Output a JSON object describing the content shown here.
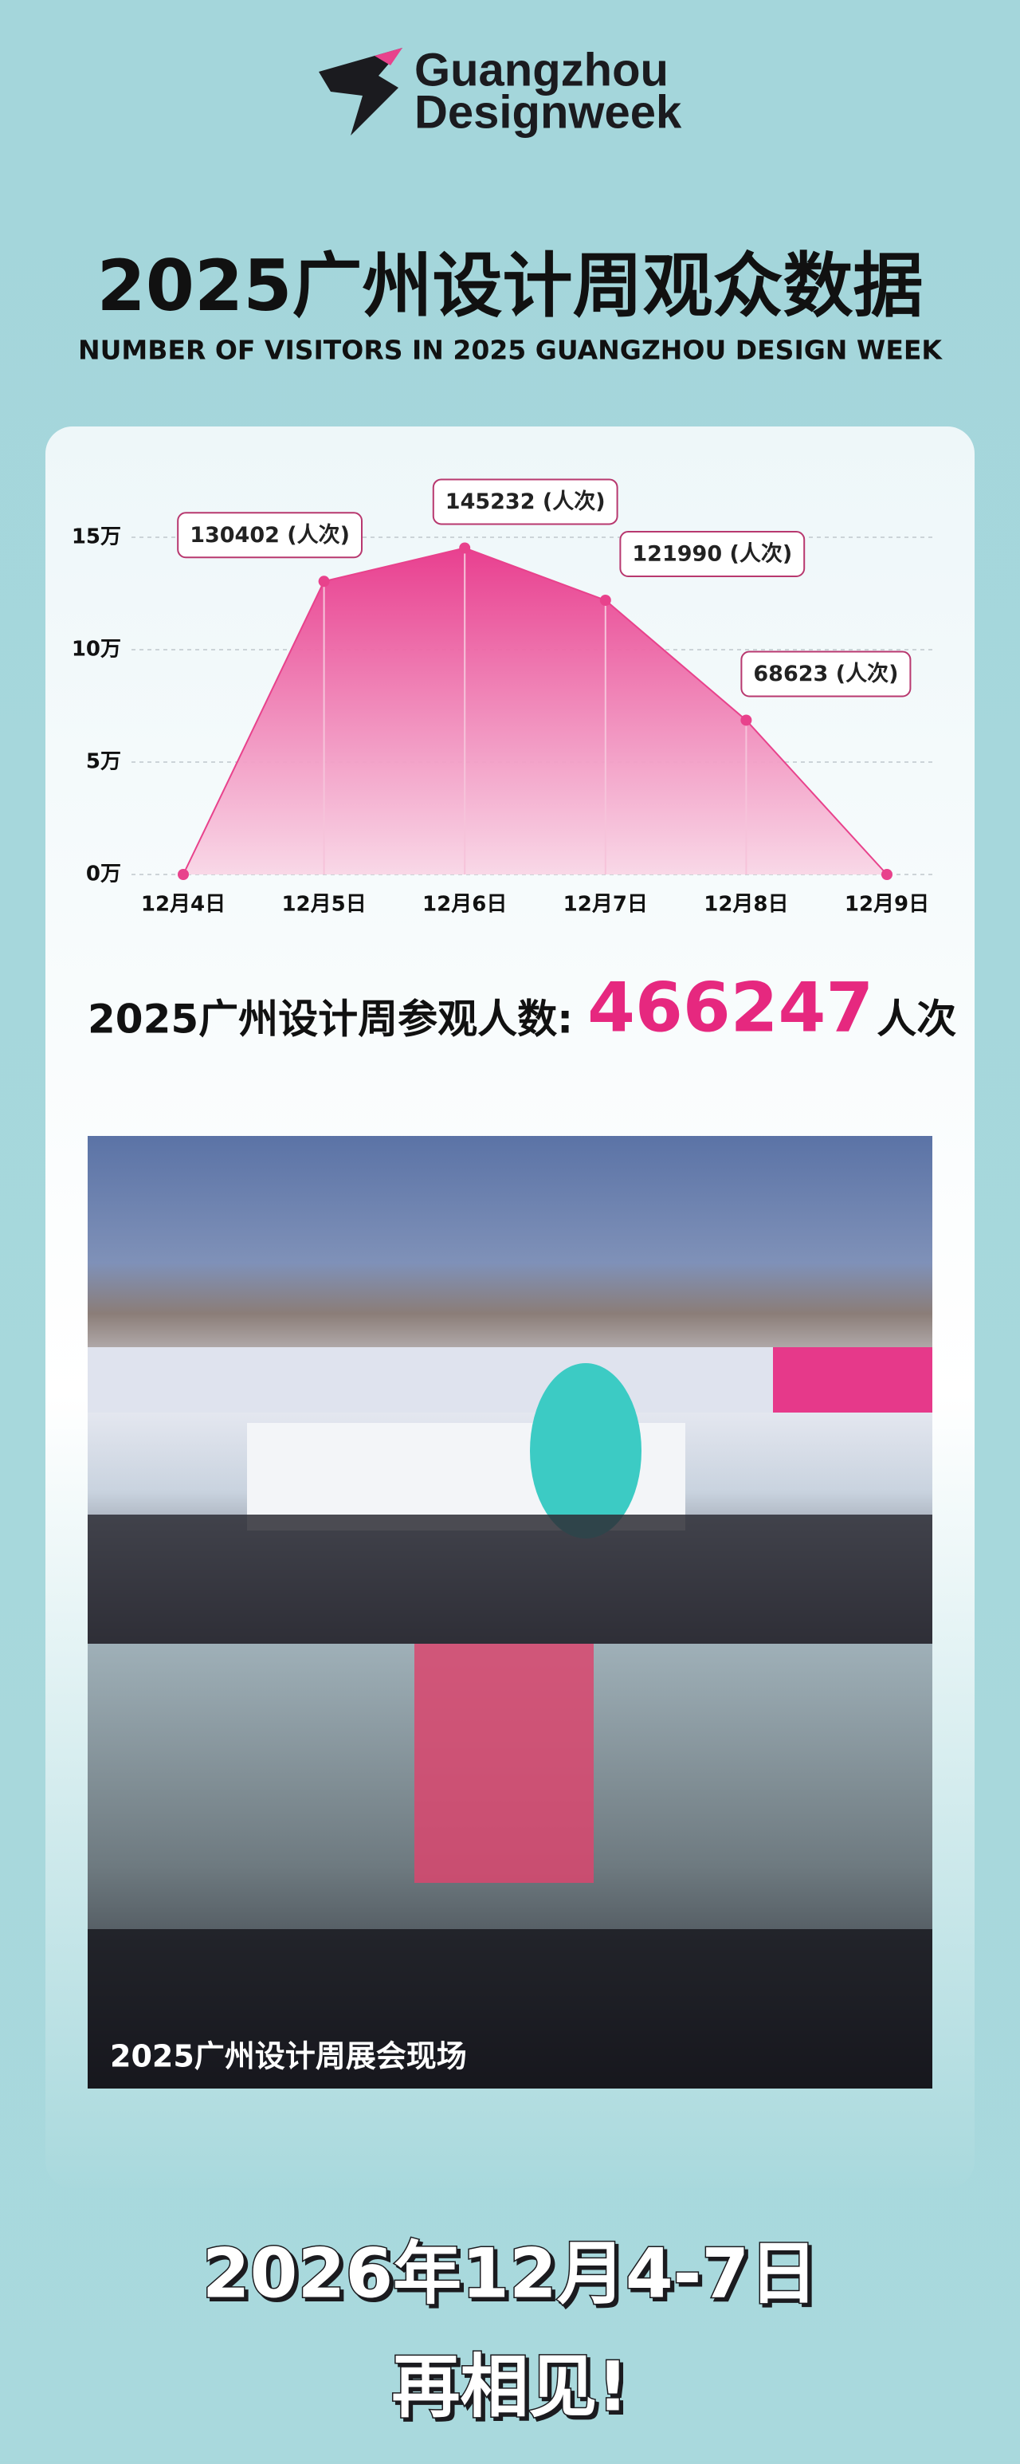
{
  "logo": {
    "line1": "Guangzhou",
    "line2": "Designweek"
  },
  "header": {
    "title": "2025广州设计周观众数据",
    "subtitle": "NUMBER OF VISITORS IN 2025 GUANGZHOU DESIGN WEEK"
  },
  "chart_data": {
    "type": "area",
    "categories": [
      "12月4日",
      "12月5日",
      "12月6日",
      "12月7日",
      "12月8日",
      "12月9日"
    ],
    "values": [
      0,
      130402,
      145232,
      121990,
      68623,
      0
    ],
    "value_labels": [
      null,
      "130402 (人次)",
      "145232 (人次)",
      "121990 (人次)",
      "68623 (人次)",
      null
    ],
    "color": "#e8428c",
    "ylim": [
      0,
      150000
    ],
    "yticks": [
      {
        "value": 0,
        "label": "0万"
      },
      {
        "value": 50000,
        "label": "5万"
      },
      {
        "value": 100000,
        "label": "10万"
      },
      {
        "value": 150000,
        "label": "15万"
      }
    ],
    "grid": true
  },
  "total": {
    "label": "2025广州设计周参观人数:",
    "value": 466247,
    "unit": "人次"
  },
  "photo": {
    "caption": "2025广州设计周展会现场"
  },
  "footer": {
    "date": "2026年12月4-7日",
    "message": "再相见!"
  }
}
